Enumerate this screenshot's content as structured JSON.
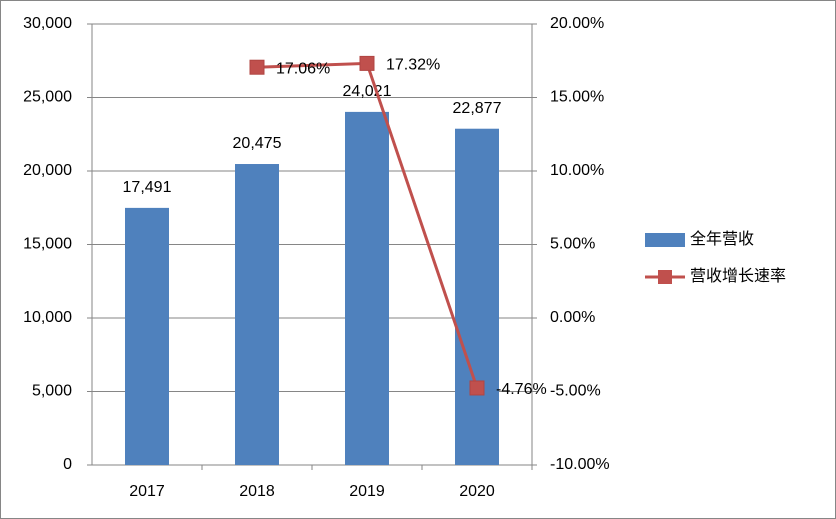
{
  "chart_data": {
    "type": "bar",
    "categories": [
      "2017",
      "2018",
      "2019",
      "2020"
    ],
    "series": [
      {
        "name": "全年营收",
        "color": "#4f81bd",
        "values": [
          17491,
          20475,
          24021,
          22877
        ],
        "value_labels": [
          "17,491",
          "20,475",
          "24,021",
          "22,877"
        ]
      },
      {
        "name": "营收增长速率",
        "type": "line",
        "axis": "y2",
        "color": "#c0504d",
        "values": [
          null,
          17.06,
          17.32,
          -4.76
        ],
        "value_labels": [
          null,
          "17.06%",
          "17.32%",
          "-4.76%"
        ]
      }
    ],
    "ylim": [
      0,
      30000
    ],
    "yticks": [
      0,
      {
        "value": 5000,
        "label": "5,000"
      },
      {
        "value": 10000,
        "label": "10,000"
      },
      {
        "value": 15000,
        "label": "15,000"
      },
      {
        "value": 20000,
        "label": "20,000"
      },
      {
        "value": 25000,
        "label": "25,000"
      },
      {
        "value": 30000,
        "label": "30,000"
      }
    ],
    "y2lim": [
      -10,
      20
    ],
    "y2ticks": [
      {
        "value": -10,
        "label": "-10.00%"
      },
      {
        "value": -5,
        "label": "-5.00%"
      },
      {
        "value": 0,
        "label": "0.00%"
      },
      {
        "value": 5,
        "label": "5.00%"
      },
      {
        "value": 10,
        "label": "10.00%"
      },
      {
        "value": 15,
        "label": "15.00%"
      },
      {
        "value": 20,
        "label": "20.00%"
      }
    ],
    "grid": true,
    "legend": "right"
  }
}
